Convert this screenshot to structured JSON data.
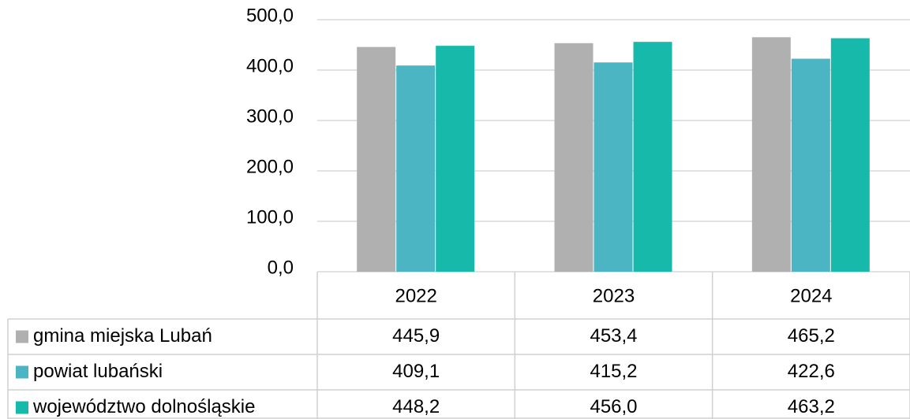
{
  "chart_data": {
    "type": "bar",
    "categories": [
      "2022",
      "2023",
      "2024"
    ],
    "series": [
      {
        "name": "gmina miejska Lubań",
        "color": "#b0b0b0",
        "values": [
          445.9,
          453.4,
          465.2
        ],
        "value_labels": [
          "445,9",
          "453,4",
          "465,2"
        ]
      },
      {
        "name": "powiat lubański",
        "color": "#4bb5c4",
        "values": [
          409.1,
          415.2,
          422.6
        ],
        "value_labels": [
          "409,1",
          "415,2",
          "422,6"
        ]
      },
      {
        "name": "województwo dolnośląskie",
        "color": "#17b9ab",
        "values": [
          448.2,
          456.0,
          463.2
        ],
        "value_labels": [
          "448,2",
          "456,0",
          "463,2"
        ]
      }
    ],
    "ylim": [
      0,
      500
    ],
    "yticks": [
      {
        "value": 0,
        "label": "0,0"
      },
      {
        "value": 100,
        "label": "100,0"
      },
      {
        "value": 200,
        "label": "200,0"
      },
      {
        "value": 300,
        "label": "300,0"
      },
      {
        "value": 400,
        "label": "400,0"
      },
      {
        "value": 500,
        "label": "500,0"
      }
    ],
    "grid": true,
    "legend": "table"
  }
}
